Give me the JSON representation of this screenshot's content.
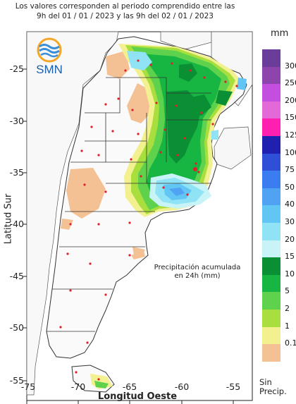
{
  "header": {
    "line1": "Los valores corresponden al periodo comprendido entre las",
    "line2": "9h del 01 / 01 / 2023  y las 9h del 02 / 01 / 2023"
  },
  "logo": {
    "text": "SMN"
  },
  "annotation": {
    "line1": "Precipitación acumulada",
    "line2": "en 24h (mm)"
  },
  "axes": {
    "x_label": "Longitud Oeste",
    "y_label": "Latitud Sur",
    "x_ticks": [
      "-75",
      "-70",
      "-65",
      "-60",
      "-55"
    ],
    "y_ticks": [
      "-25",
      "-30",
      "-35",
      "-40",
      "-45",
      "-50",
      "-55"
    ]
  },
  "legend": {
    "unit": "mm",
    "no_precip_line1": "Sin",
    "no_precip_line2": "Precip.",
    "levels": [
      {
        "label": "300",
        "color": "#6a3d9a"
      },
      {
        "label": "250",
        "color": "#8e44ad"
      },
      {
        "label": "200",
        "color": "#c44ee0"
      },
      {
        "label": "150",
        "color": "#e26ad8"
      },
      {
        "label": "125",
        "color": "#ff1fb0"
      },
      {
        "label": "100",
        "color": "#2020b0"
      },
      {
        "label": "75",
        "color": "#2e4fd6"
      },
      {
        "label": "50",
        "color": "#3b7df0"
      },
      {
        "label": "40",
        "color": "#4fa3f2"
      },
      {
        "label": "30",
        "color": "#62c6f5"
      },
      {
        "label": "20",
        "color": "#8fe3f5"
      },
      {
        "label": "15",
        "color": "#c8f4f7"
      },
      {
        "label": "10",
        "color": "#0a8f35"
      },
      {
        "label": "5",
        "color": "#17b542"
      },
      {
        "label": "2",
        "color": "#5fd24d"
      },
      {
        "label": "1",
        "color": "#a8df3e"
      },
      {
        "label": "0.1",
        "color": "#f3f08f"
      },
      {
        "label": "",
        "color": "#f3c194"
      }
    ]
  }
}
